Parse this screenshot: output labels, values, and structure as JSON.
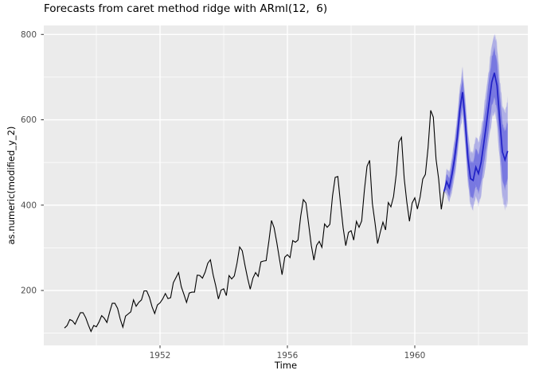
{
  "title": "Forecasts from caret method ridge with ARml(12,  6)",
  "axes": {
    "x_label": "Time",
    "y_label": "as.numeric(modified_y_2)"
  },
  "colors": {
    "panel_background": "#EBEBEB",
    "gridline": "#FFFFFF",
    "observed_line": "#000000",
    "forecast_line": "#2121C6",
    "band_80": "#7B7BDC",
    "band_95": "#BDBDEE",
    "tick_mark": "#333333",
    "tick_label": "#4D4D4D"
  },
  "chart_data": {
    "type": "line",
    "title": "Forecasts from caret method ridge with ARml(12,  6)",
    "xlabel": "Time",
    "ylabel": "as.numeric(modified_y_2)",
    "xlim": [
      1948.4,
      1963.45
    ],
    "ylim": [
      66,
      821
    ],
    "grid": "white major and minor gridlines on gray panel",
    "legend": "none",
    "x_ticks": [
      1952,
      1956,
      1960
    ],
    "x_tick_labels": [
      "1952",
      "1956",
      "1960"
    ],
    "x_minor_ticks": [
      1950,
      1954,
      1958,
      1962
    ],
    "y_ticks": [
      200,
      400,
      600,
      800
    ],
    "y_tick_labels": [
      "200",
      "400",
      "600",
      "800"
    ],
    "y_minor_ticks": [
      100,
      300,
      500,
      700
    ],
    "series": [
      {
        "name": "observed",
        "start_year": 1949,
        "frequency": 12,
        "color": "#000000",
        "values": [
          112,
          118,
          132,
          129,
          121,
          135,
          148,
          148,
          136,
          119,
          104,
          118,
          115,
          126,
          141,
          135,
          125,
          149,
          170,
          170,
          158,
          133,
          114,
          140,
          145,
          150,
          178,
          163,
          172,
          178,
          199,
          199,
          184,
          162,
          146,
          166,
          171,
          180,
          193,
          181,
          183,
          218,
          230,
          242,
          209,
          191,
          172,
          194,
          196,
          196,
          236,
          235,
          229,
          243,
          264,
          272,
          237,
          211,
          180,
          201,
          204,
          188,
          235,
          227,
          234,
          264,
          302,
          293,
          259,
          229,
          203,
          229,
          242,
          233,
          267,
          269,
          270,
          315,
          364,
          347,
          312,
          274,
          237,
          278,
          284,
          277,
          317,
          313,
          318,
          374,
          413,
          405,
          355,
          306,
          271,
          306,
          315,
          301,
          356,
          348,
          355,
          422,
          465,
          467,
          404,
          347,
          305,
          336,
          340,
          318,
          362,
          348,
          363,
          435,
          491,
          505,
          404,
          359,
          310,
          337,
          360,
          342,
          406,
          396,
          420,
          472,
          548,
          559,
          463,
          407,
          362,
          405,
          417,
          391,
          419,
          461,
          472,
          535,
          622,
          606,
          508,
          461,
          390,
          432
        ]
      },
      {
        "name": "forecast-mean",
        "start_year": 1961,
        "frequency": 12,
        "color": "#2121C6",
        "values": [
          455,
          441,
          472,
          510,
          558,
          625,
          665,
          598,
          510,
          462,
          458,
          489,
          474,
          500,
          545,
          590,
          640,
          688,
          710,
          680,
          600,
          525,
          506,
          527
        ]
      }
    ],
    "bands": [
      {
        "level": "95%",
        "start_year": 1961,
        "frequency": 12,
        "lower": [
          425,
          405,
          431,
          465,
          509,
          573,
          610,
          540,
          449,
          398,
          391,
          419,
          402,
          426,
          468,
          510,
          558,
          603,
          622,
          588,
          503,
          421,
          394,
          409
        ],
        "upper": [
          485,
          477,
          513,
          555,
          607,
          677,
          720,
          656,
          571,
          526,
          525,
          559,
          546,
          574,
          622,
          670,
          722,
          773,
          798,
          772,
          697,
          629,
          618,
          645
        ]
      },
      {
        "level": "80%",
        "start_year": 1961,
        "frequency": 12,
        "lower": [
          437,
          419,
          447,
          482,
          528,
          593,
          631,
          562,
          472,
          422,
          416,
          445,
          428,
          452,
          495,
          538,
          586,
          632,
          652,
          620,
          538,
          461,
          440,
          459
        ],
        "upper": [
          473,
          463,
          497,
          538,
          588,
          657,
          699,
          634,
          548,
          502,
          500,
          533,
          520,
          548,
          595,
          642,
          694,
          744,
          768,
          740,
          662,
          589,
          572,
          595
        ]
      }
    ]
  }
}
